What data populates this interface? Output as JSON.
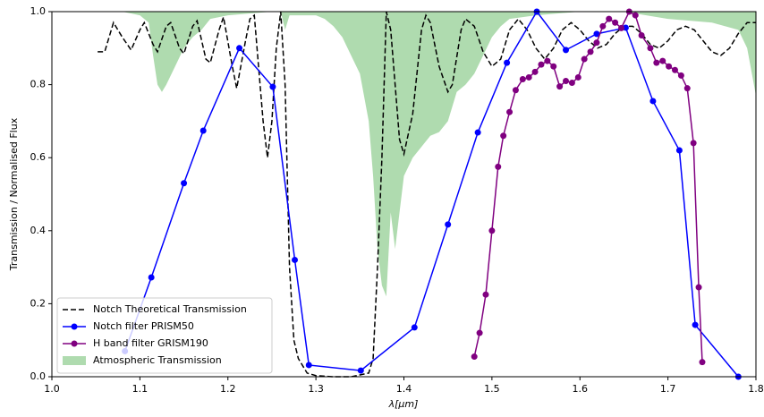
{
  "chart_data": {
    "type": "line",
    "xlabel": "λ[μm]",
    "ylabel": "Transmission / Normalised Flux",
    "xlim": [
      1.0,
      1.8
    ],
    "ylim": [
      0,
      1
    ],
    "xticks": [
      {
        "value": 1,
        "label": "1.0"
      },
      1.1,
      1.2,
      1.3,
      1.4,
      1.5,
      1.6,
      1.7,
      1.8
    ],
    "yticks": [
      {
        "value": 0,
        "label": "0.0"
      },
      0.2,
      0.4,
      0.6,
      0.8,
      {
        "value": 1,
        "label": "1.0"
      }
    ],
    "legend": "lower left",
    "series": [
      {
        "name": "Notch Theoretical Transmission",
        "color": "#000000",
        "style": "dashed",
        "x": [
          1.052,
          1.06,
          1.07,
          1.08,
          1.09,
          1.1,
          1.105,
          1.115,
          1.12,
          1.13,
          1.135,
          1.145,
          1.15,
          1.16,
          1.165,
          1.175,
          1.18,
          1.19,
          1.195,
          1.205,
          1.21,
          1.22,
          1.225,
          1.23,
          1.24,
          1.245,
          1.25,
          1.255,
          1.26,
          1.265,
          1.27,
          1.275,
          1.28,
          1.29,
          1.3,
          1.32,
          1.34,
          1.36,
          1.365,
          1.37,
          1.375,
          1.38,
          1.385,
          1.39,
          1.395,
          1.4,
          1.41,
          1.42,
          1.425,
          1.43,
          1.44,
          1.45,
          1.455,
          1.465,
          1.47,
          1.48,
          1.49,
          1.5,
          1.51,
          1.52,
          1.53,
          1.54,
          1.55,
          1.56,
          1.57,
          1.58,
          1.59,
          1.6,
          1.61,
          1.62,
          1.63,
          1.64,
          1.65,
          1.66,
          1.67,
          1.68,
          1.69,
          1.7,
          1.71,
          1.72,
          1.73,
          1.74,
          1.75,
          1.76,
          1.77,
          1.78,
          1.79,
          1.8
        ],
        "values": [
          0.89,
          0.89,
          0.97,
          0.93,
          0.895,
          0.95,
          0.97,
          0.91,
          0.89,
          0.96,
          0.97,
          0.9,
          0.885,
          0.96,
          0.975,
          0.87,
          0.86,
          0.95,
          0.985,
          0.85,
          0.79,
          0.92,
          0.98,
          0.99,
          0.7,
          0.6,
          0.7,
          0.9,
          1.0,
          0.8,
          0.3,
          0.1,
          0.05,
          0.01,
          0.003,
          0.0,
          0.0,
          0.01,
          0.05,
          0.3,
          0.6,
          1.0,
          0.95,
          0.8,
          0.65,
          0.61,
          0.72,
          0.95,
          0.99,
          0.97,
          0.85,
          0.78,
          0.8,
          0.95,
          0.98,
          0.96,
          0.89,
          0.85,
          0.87,
          0.95,
          0.98,
          0.95,
          0.9,
          0.87,
          0.9,
          0.95,
          0.97,
          0.95,
          0.92,
          0.9,
          0.91,
          0.94,
          0.96,
          0.96,
          0.94,
          0.91,
          0.9,
          0.92,
          0.95,
          0.96,
          0.95,
          0.92,
          0.89,
          0.88,
          0.9,
          0.94,
          0.97,
          0.97
        ]
      },
      {
        "name": "Notch filter PRISM50",
        "color": "#0000ff",
        "style": "marker",
        "x": [
          1.083,
          1.113,
          1.15,
          1.172,
          1.213,
          1.251,
          1.276,
          1.292,
          1.351,
          1.412,
          1.45,
          1.484,
          1.517,
          1.551,
          1.584,
          1.619,
          1.652,
          1.683,
          1.713,
          1.731,
          1.78
        ],
        "values": [
          0.07,
          0.272,
          0.53,
          0.674,
          0.9,
          0.794,
          0.32,
          0.032,
          0.017,
          0.135,
          0.417,
          0.669,
          0.86,
          1.0,
          0.895,
          0.939,
          0.956,
          0.755,
          0.62,
          0.142,
          0.0
        ]
      },
      {
        "name": "H band filter GRISM190",
        "color": "#800080",
        "style": "marker",
        "x": [
          1.48,
          1.486,
          1.493,
          1.5,
          1.507,
          1.513,
          1.52,
          1.527,
          1.535,
          1.542,
          1.549,
          1.556,
          1.563,
          1.57,
          1.577,
          1.584,
          1.591,
          1.598,
          1.605,
          1.612,
          1.619,
          1.626,
          1.633,
          1.64,
          1.647,
          1.656,
          1.663,
          1.67,
          1.68,
          1.687,
          1.694,
          1.701,
          1.708,
          1.715,
          1.722,
          1.729,
          1.735,
          1.739
        ],
        "values": [
          0.055,
          0.12,
          0.225,
          0.4,
          0.575,
          0.66,
          0.725,
          0.785,
          0.815,
          0.82,
          0.835,
          0.855,
          0.865,
          0.85,
          0.795,
          0.81,
          0.805,
          0.82,
          0.87,
          0.89,
          0.915,
          0.96,
          0.98,
          0.97,
          0.955,
          1.0,
          0.99,
          0.935,
          0.9,
          0.86,
          0.865,
          0.85,
          0.84,
          0.825,
          0.79,
          0.64,
          0.245,
          0.04
        ]
      },
      {
        "name": "Atmospheric Transmission",
        "color": "#2ca02c",
        "style": "area",
        "x": [
          1.08,
          1.1,
          1.11,
          1.115,
          1.12,
          1.125,
          1.13,
          1.14,
          1.15,
          1.16,
          1.17,
          1.18,
          1.2,
          1.25,
          1.26,
          1.265,
          1.27,
          1.3,
          1.31,
          1.32,
          1.33,
          1.34,
          1.35,
          1.36,
          1.365,
          1.37,
          1.375,
          1.38,
          1.385,
          1.39,
          1.395,
          1.4,
          1.41,
          1.42,
          1.43,
          1.44,
          1.45,
          1.46,
          1.47,
          1.48,
          1.49,
          1.5,
          1.51,
          1.52,
          1.55,
          1.6,
          1.65,
          1.7,
          1.75,
          1.78,
          1.79,
          1.8
        ],
        "values": [
          1.0,
          0.99,
          0.97,
          0.88,
          0.8,
          0.78,
          0.8,
          0.85,
          0.9,
          0.93,
          0.95,
          0.98,
          0.99,
          1.0,
          1.0,
          0.95,
          0.99,
          0.99,
          0.98,
          0.96,
          0.93,
          0.88,
          0.83,
          0.7,
          0.55,
          0.35,
          0.25,
          0.22,
          0.45,
          0.35,
          0.45,
          0.55,
          0.6,
          0.63,
          0.66,
          0.67,
          0.7,
          0.78,
          0.8,
          0.83,
          0.88,
          0.93,
          0.96,
          0.98,
          0.99,
          1.0,
          1.0,
          0.98,
          0.97,
          0.95,
          0.9,
          0.77
        ]
      }
    ]
  }
}
